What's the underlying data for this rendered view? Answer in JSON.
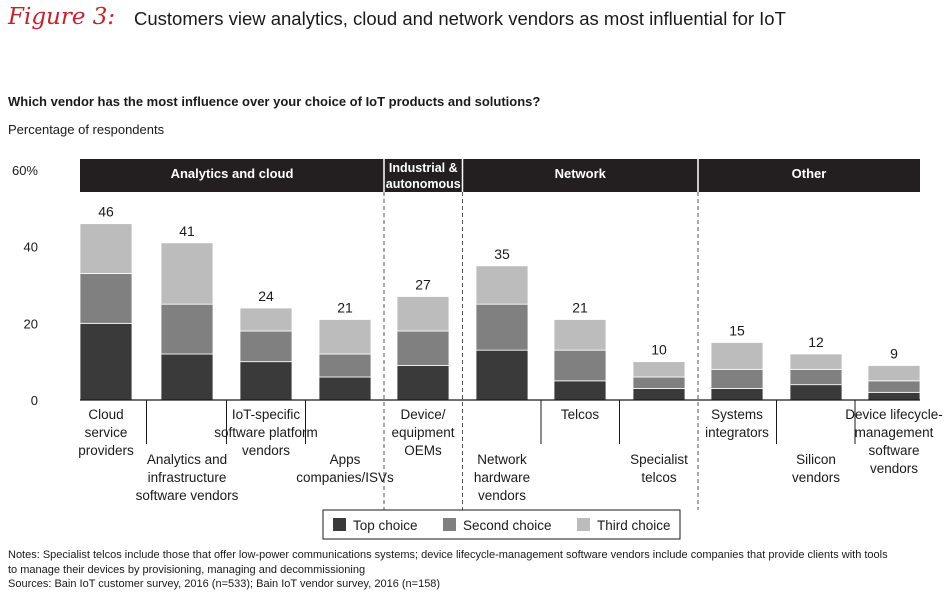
{
  "figure_label": "Figure 3:",
  "figure_title": "Customers view analytics, cloud and network vendors as most influential for IoT",
  "question": "Which vendor has the most influence over your choice of IoT products and solutions?",
  "notes": {
    "line1": "Notes: Specialist telcos include those that offer low-power communications systems; device lifecycle-management software vendors include companies that provide clients with tools",
    "line2": "to manage their devices by provisioning, managing and decommissioning",
    "line3": "Sources: Bain IoT customer survey, 2016 (n=533); Bain IoT vendor survey, 2016 (n=158)"
  },
  "chart_data": {
    "type": "bar",
    "stacked": true,
    "ylabel": "Percentage of respondents",
    "ylim": [
      0,
      60
    ],
    "yticks": [
      0,
      20,
      40,
      60
    ],
    "ytick_labels": [
      "0",
      "20",
      "40",
      "60%"
    ],
    "groups": [
      {
        "label": "Analytics and cloud",
        "start": 0,
        "end": 3
      },
      {
        "label": "Industrial & autonomous",
        "start": 4,
        "end": 4
      },
      {
        "label": "Network",
        "start": 5,
        "end": 7
      },
      {
        "label": "Other",
        "start": 8,
        "end": 10
      }
    ],
    "categories": [
      "Cloud service providers",
      "Analytics and infrastructure software vendors",
      "IoT-specific software platform vendors",
      "Apps companies/ISVs",
      "Device/ equipment OEMs",
      "Network hardware vendors",
      "Telcos",
      "Specialist telcos",
      "Systems integrators",
      "Silicon vendors",
      "Device lifecycle-management software vendors"
    ],
    "series": [
      {
        "name": "Top choice",
        "color": "#3a3a3a",
        "values": [
          20,
          12,
          10,
          6,
          9,
          13,
          5,
          3,
          3,
          4,
          2
        ]
      },
      {
        "name": "Second choice",
        "color": "#808080",
        "values": [
          13,
          13,
          8,
          6,
          9,
          12,
          8,
          3,
          5,
          4,
          3
        ]
      },
      {
        "name": "Third choice",
        "color": "#bcbcbc",
        "values": [
          13,
          16,
          6,
          9,
          9,
          10,
          8,
          4,
          7,
          4,
          4
        ]
      }
    ],
    "totals": [
      46,
      41,
      24,
      21,
      27,
      35,
      21,
      10,
      15,
      12,
      9
    ],
    "legend_position": "bottom-center"
  }
}
